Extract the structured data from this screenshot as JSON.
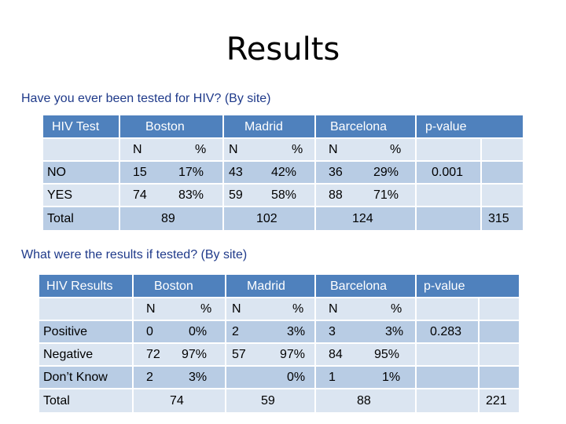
{
  "title": "Results",
  "table1": {
    "question": "Have you ever been tested for HIV? (By site)",
    "headers": [
      "HIV Test",
      "Boston",
      "Madrid",
      "Barcelona",
      "p-value"
    ],
    "sub": [
      "N",
      "%",
      "N",
      "%",
      "N",
      "%"
    ],
    "rows": [
      {
        "label": "NO",
        "vals": [
          "15",
          "17%",
          "43",
          "42%",
          "36",
          "29%"
        ]
      },
      {
        "label": "YES",
        "vals": [
          "74",
          "83%",
          "59",
          "58%",
          "88",
          "71%"
        ]
      }
    ],
    "pvalue": "0.001",
    "total_label": "Total",
    "totals": [
      "89",
      "102",
      "124",
      "315"
    ]
  },
  "table2": {
    "question": "What were the results if tested? (By site)",
    "headers": [
      "HIV Results",
      "Boston",
      "Madrid",
      "Barcelona",
      "p-value"
    ],
    "sub": [
      "N",
      "%",
      "N",
      "%",
      "N",
      "%"
    ],
    "rows": [
      {
        "label": "Positive",
        "vals": [
          "0",
          "0%",
          "2",
          "3%",
          "3",
          "3%"
        ]
      },
      {
        "label": "Negative",
        "vals": [
          "72",
          "97%",
          "57",
          "97%",
          "84",
          "95%"
        ]
      },
      {
        "label": "Don’t Know",
        "vals": [
          "2",
          "3%",
          "",
          "0%",
          "1",
          "1%"
        ]
      }
    ],
    "pvalue": "0.283",
    "total_label": "Total",
    "totals": [
      "74",
      "59",
      "88",
      "221"
    ]
  },
  "colors": {
    "header": "#4f81bd",
    "light": "#dbe5f1",
    "mid": "#b8cce4"
  }
}
